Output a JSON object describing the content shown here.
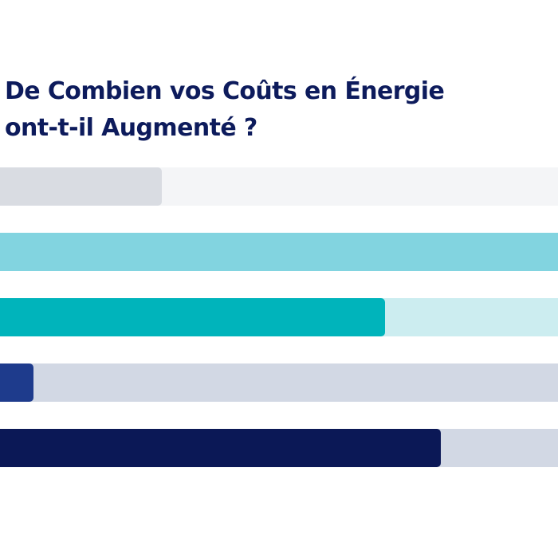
{
  "title": {
    "line1": "De Combien vos Coûts en Énergie",
    "line2": "ont-t-il Augmenté ?",
    "color": "#0d1b5c"
  },
  "chart_data": {
    "type": "bar",
    "orientation": "horizontal",
    "title": "De Combien vos Coûts en Énergie ont-t-il Augmenté ?",
    "categories": [
      "",
      "",
      "",
      "",
      ""
    ],
    "values": [
      29,
      100,
      69,
      6,
      79
    ],
    "xlim": [
      0,
      100
    ],
    "grid": false,
    "legend": "none",
    "bar_colors": [
      "#d9dce2",
      "#82d4e0",
      "#00b4bb",
      "#1e3b8c",
      "#0b1856"
    ],
    "track_colors": [
      "#f4f5f7",
      "#82d4e0",
      "#ccedf0",
      "#d2d8e4",
      "#d2d8e4"
    ]
  }
}
